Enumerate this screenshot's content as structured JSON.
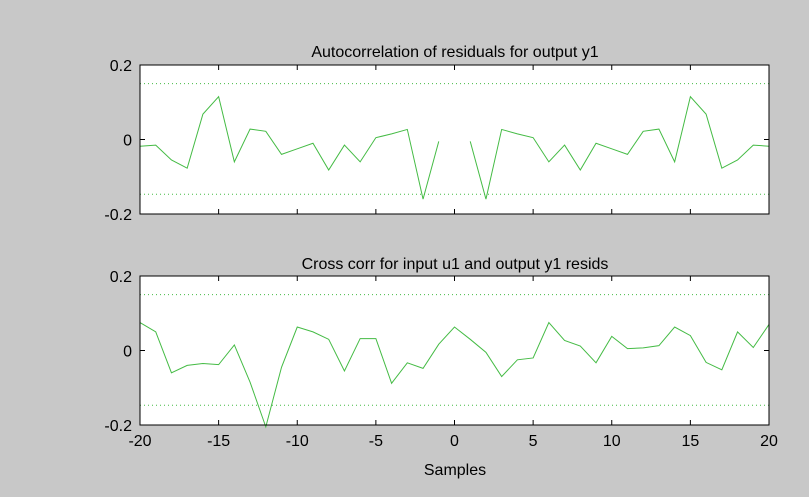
{
  "figure": {
    "background": "#c8c8c8",
    "line_color": "#44bb44",
    "axes_color": "#000000"
  },
  "chart_data": [
    {
      "type": "line",
      "title": "Autocorrelation of residuals for output y1",
      "xlabel": "",
      "ylabel": "",
      "xlim": [
        -20,
        20
      ],
      "ylim": [
        -0.2,
        0.2
      ],
      "yticks": [
        {
          "v": -0.2,
          "label": "-0.2"
        },
        {
          "v": 0,
          "label": "0"
        },
        {
          "v": 0.2,
          "label": "0.2"
        }
      ],
      "xticks": [
        -20,
        -15,
        -10,
        -5,
        0,
        5,
        10,
        15,
        20
      ],
      "show_xtick_labels": false,
      "confidence_band": [
        -0.147,
        0.15
      ],
      "segments": [
        {
          "x": [
            -20,
            -19,
            -18,
            -17,
            -16,
            -15,
            -14,
            -13,
            -12,
            -11,
            -10,
            -9,
            -8,
            -7,
            -6,
            -5,
            -4,
            -3,
            -2,
            -1
          ],
          "y": [
            -0.018,
            -0.015,
            -0.055,
            -0.077,
            0.068,
            0.115,
            -0.06,
            0.028,
            0.022,
            -0.04,
            -0.025,
            -0.01,
            -0.082,
            -0.015,
            -0.06,
            0.005,
            0.015,
            0.027,
            -0.16,
            -0.005
          ]
        },
        {
          "x": [
            1,
            2,
            3,
            4,
            5,
            6,
            7,
            8,
            9,
            10,
            11,
            12,
            13,
            14,
            15,
            16,
            17,
            18,
            19,
            20
          ],
          "y": [
            -0.005,
            -0.16,
            0.027,
            0.015,
            0.005,
            -0.06,
            -0.015,
            -0.082,
            -0.01,
            -0.025,
            -0.04,
            0.022,
            0.028,
            -0.06,
            0.115,
            0.068,
            -0.077,
            -0.055,
            -0.015,
            -0.018
          ]
        }
      ]
    },
    {
      "type": "line",
      "title": "Cross corr for input u1 and output y1 resids",
      "xlabel": "Samples",
      "ylabel": "",
      "xlim": [
        -20,
        20
      ],
      "ylim": [
        -0.2,
        0.2
      ],
      "yticks": [
        {
          "v": -0.2,
          "label": "-0.2"
        },
        {
          "v": 0,
          "label": "0"
        },
        {
          "v": 0.2,
          "label": "0.2"
        }
      ],
      "xticks": [
        -20,
        -15,
        -10,
        -5,
        0,
        5,
        10,
        15,
        20
      ],
      "xtick_labels": [
        "-20",
        "-15",
        "-10",
        "-5",
        "0",
        "5",
        "10",
        "15",
        "20"
      ],
      "show_xtick_labels": true,
      "confidence_band": [
        -0.147,
        0.15
      ],
      "segments": [
        {
          "x": [
            -20,
            -19,
            -18,
            -17,
            -16,
            -15,
            -14,
            -13,
            -12,
            -11,
            -10,
            -9,
            -8,
            -7,
            -6,
            -5,
            -4,
            -3,
            -2,
            -1,
            0,
            1,
            2,
            3,
            4,
            5,
            6,
            7,
            8,
            9,
            10,
            11,
            12,
            13,
            14,
            15,
            16,
            17,
            18,
            19,
            20
          ],
          "y": [
            0.075,
            0.05,
            -0.06,
            -0.04,
            -0.035,
            -0.038,
            0.015,
            -0.085,
            -0.205,
            -0.045,
            0.063,
            0.05,
            0.03,
            -0.055,
            0.032,
            0.032,
            -0.088,
            -0.033,
            -0.048,
            0.017,
            0.063,
            0.03,
            -0.005,
            -0.07,
            -0.025,
            -0.02,
            0.075,
            0.027,
            0.012,
            -0.033,
            0.038,
            0.005,
            0.007,
            0.013,
            0.063,
            0.04,
            -0.032,
            -0.052,
            0.05,
            0.008,
            0.07
          ]
        }
      ]
    }
  ]
}
